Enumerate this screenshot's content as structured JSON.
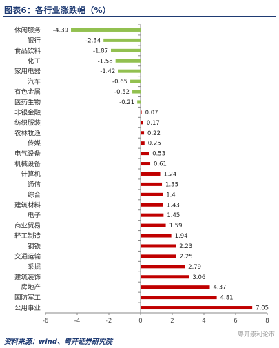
{
  "header": {
    "title": "图表6：各行业涨跌幅（%）"
  },
  "footer": {
    "source": "资料来源：wind、粤开证券研究院",
    "watermark": "粤开崇利论市"
  },
  "colors": {
    "negative": "#92c050",
    "positive": "#c00000",
    "axis": "#888888",
    "text_blue": "#1f3b73"
  },
  "chart_data": {
    "type": "bar",
    "orientation": "horizontal",
    "categories": [
      "休闲服务",
      "银行",
      "食品饮料",
      "化工",
      "家用电器",
      "汽车",
      "有色金属",
      "医药生物",
      "非银金融",
      "纺织服装",
      "农林牧渔",
      "传媒",
      "电气设备",
      "机械设备",
      "计算机",
      "通信",
      "综合",
      "建筑材料",
      "电子",
      "商业贸易",
      "轻工制造",
      "钢铁",
      "交通运输",
      "采掘",
      "建筑装饰",
      "房地产",
      "国防军工",
      "公用事业"
    ],
    "values": [
      -4.39,
      -2.34,
      -1.87,
      -1.58,
      -1.42,
      -0.65,
      -0.52,
      -0.21,
      0.07,
      0.17,
      0.22,
      0.25,
      0.53,
      0.61,
      1.24,
      1.35,
      1.4,
      1.43,
      1.45,
      1.59,
      1.94,
      2.23,
      2.25,
      2.79,
      3.06,
      4.37,
      4.81,
      7.05
    ],
    "value_labels": [
      "-4.39",
      "-2.34",
      "-1.87",
      "-1.58",
      "-1.42",
      "-0.65",
      "-0.52",
      "-0.21",
      "0.07",
      "0.17",
      "0.22",
      "0.25",
      "0.53",
      "0.61",
      "1.24",
      "1.35",
      "1.4",
      "1.43",
      "1.45",
      "1.59",
      "1.94",
      "2.23",
      "2.25",
      "2.79",
      "3.06",
      "4.37",
      "4.81",
      "7.05"
    ],
    "xlim": [
      -6,
      8
    ],
    "xticks": [
      -6,
      -4,
      -2,
      0,
      2,
      4,
      6,
      8
    ],
    "xtick_labels": [
      "-6",
      "-4",
      "-2",
      "0",
      "2",
      "4",
      "6",
      "8"
    ],
    "grid": false,
    "legend": false
  }
}
